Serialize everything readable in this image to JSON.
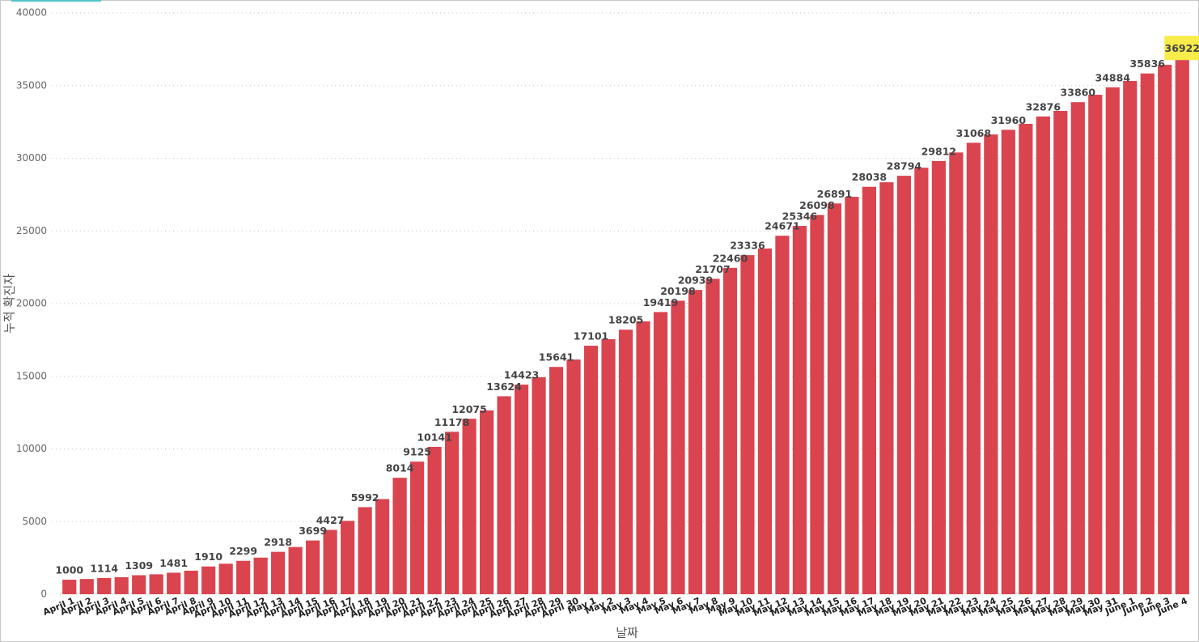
{
  "chart_data": {
    "type": "bar",
    "x_label": "날짜",
    "y_label": "누적 확진자",
    "categories": [
      "April 1",
      "April 2",
      "April 3",
      "April 4",
      "April 5",
      "April 6",
      "April 7",
      "April 8",
      "April 9",
      "April 10",
      "April 11",
      "April 12",
      "April 13",
      "April 14",
      "April 15",
      "April 16",
      "April 17",
      "April 18",
      "April 19",
      "April 20",
      "April 21",
      "April 22",
      "April 23",
      "April 24",
      "April 25",
      "April 26",
      "April 27",
      "April 28",
      "April 29",
      "April 30",
      "May 1",
      "May 2",
      "May 3",
      "May 4",
      "May 5",
      "May 6",
      "May 7",
      "May 8",
      "May 9",
      "May 10",
      "May 11",
      "May 12",
      "May 13",
      "May 14",
      "May 15",
      "May 16",
      "May 17",
      "May 18",
      "May 19",
      "May 20",
      "May 21",
      "May 22",
      "May 23",
      "May 24",
      "May 25",
      "May 26",
      "May 27",
      "May 28",
      "May 29",
      "May 30",
      "May 31",
      "June 1",
      "June 2",
      "June 3",
      "June 4"
    ],
    "values": [
      1000,
      1050,
      1114,
      1170,
      1309,
      1370,
      1481,
      1620,
      1910,
      2100,
      2299,
      2520,
      2918,
      3250,
      3699,
      4427,
      5050,
      5992,
      6550,
      8014,
      9125,
      10141,
      11178,
      12075,
      12650,
      13624,
      14423,
      14930,
      15641,
      16150,
      17101,
      17550,
      18205,
      18780,
      19419,
      20198,
      20939,
      21707,
      22460,
      23336,
      23790,
      24671,
      25346,
      26098,
      26891,
      27350,
      28038,
      28350,
      28794,
      29350,
      29812,
      30400,
      31068,
      31640,
      31960,
      32370,
      32876,
      33260,
      33860,
      34370,
      34884,
      35320,
      35836,
      36430,
      36922
    ],
    "value_labels": [
      "1000",
      null,
      "1114",
      null,
      "1309",
      null,
      "1481",
      null,
      "1910",
      null,
      "2299",
      null,
      "2918",
      null,
      "3699",
      "4427",
      null,
      "5992",
      null,
      "8014",
      "9125",
      "10141",
      "11178",
      "12075",
      null,
      "13624",
      "14423",
      null,
      "15641",
      null,
      "17101",
      null,
      "18205",
      null,
      "19419",
      "20198",
      "20939",
      "21707",
      "22460",
      "23336",
      null,
      "24671",
      "25346",
      "26098",
      "26891",
      null,
      "28038",
      null,
      "28794",
      null,
      "29812",
      null,
      "31068",
      null,
      "31960",
      null,
      "32876",
      null,
      "33860",
      null,
      "34884",
      null,
      "35836",
      null,
      "36922"
    ],
    "color": "#d9444f",
    "ylim": [
      0,
      40000
    ],
    "yticks": [
      0,
      5000,
      10000,
      15000,
      20000,
      25000,
      30000,
      35000,
      40000
    ],
    "grid": true
  }
}
